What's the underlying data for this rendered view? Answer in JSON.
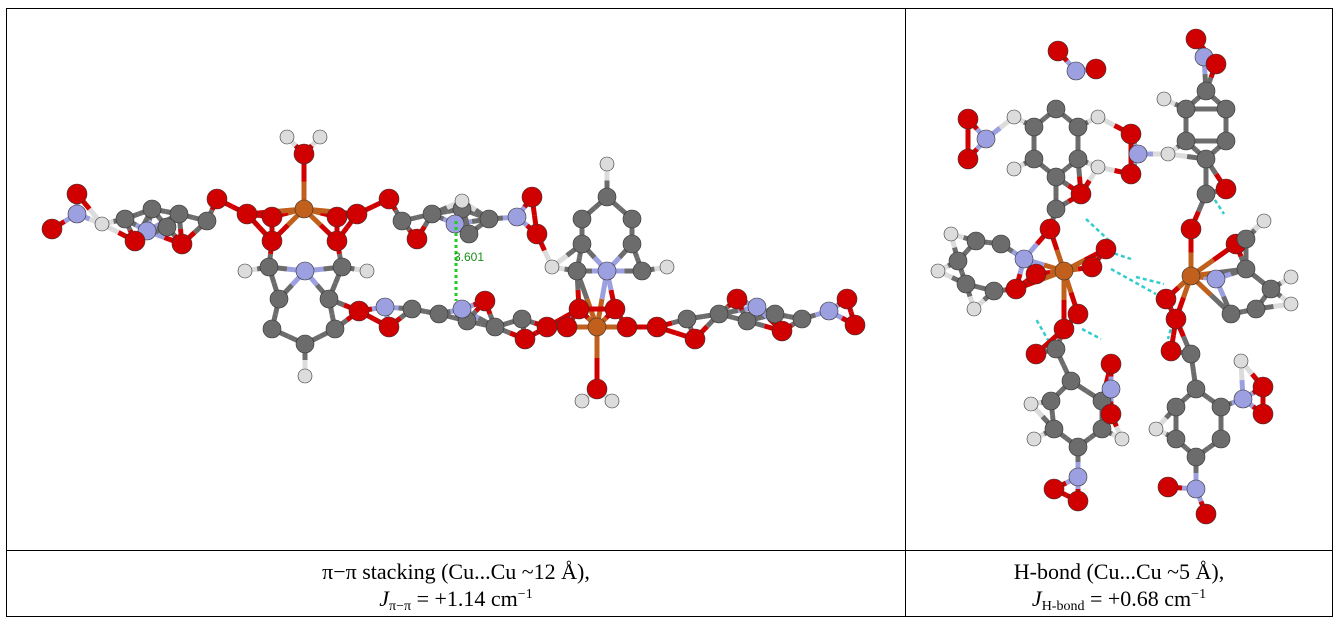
{
  "panels": [
    {
      "distance_label": "3.601",
      "caption": {
        "line1": "π−π stacking (Cu...Cu ~12 Å),",
        "symbol": "J",
        "subscript": "π−π",
        "equals": " = +1.14 cm",
        "superscript": "−1"
      }
    },
    {
      "caption": {
        "line1": "H-bond (Cu...Cu ~5 Å),",
        "symbol": "J",
        "subscript": "H-bond",
        "equals": " = +0.68 cm",
        "superscript": "−1"
      }
    }
  ]
}
